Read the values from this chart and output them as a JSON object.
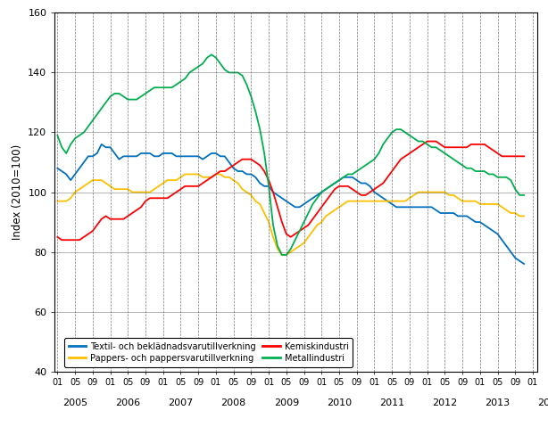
{
  "ylabel": "Index (2010=100)",
  "ylim": [
    40,
    160
  ],
  "yticks": [
    40,
    60,
    80,
    100,
    120,
    140,
    160
  ],
  "background_color": "#ffffff",
  "line_colors": {
    "textil": "#0070c0",
    "pappers": "#ffc000",
    "kemisk": "#ff0000",
    "metall": "#00b050"
  },
  "legend_labels": {
    "textil": "Textil- och beklädnadsvarutillverkning",
    "pappers": "Pappers- och pappersvarutillverkning",
    "kemisk": "Kemiskindustri",
    "metall": "Metallindustri"
  },
  "textil": [
    108,
    107,
    106,
    104,
    106,
    108,
    110,
    112,
    112,
    113,
    116,
    115,
    115,
    113,
    111,
    112,
    112,
    112,
    112,
    113,
    113,
    113,
    112,
    112,
    113,
    113,
    113,
    112,
    112,
    112,
    112,
    112,
    112,
    111,
    112,
    113,
    113,
    112,
    112,
    110,
    108,
    107,
    107,
    106,
    106,
    105,
    103,
    102,
    102,
    100,
    99,
    98,
    97,
    96,
    95,
    95,
    96,
    97,
    98,
    99,
    100,
    101,
    102,
    103,
    104,
    105,
    105,
    105,
    104,
    103,
    103,
    102,
    100,
    99,
    98,
    97,
    96,
    95,
    95,
    95,
    95,
    95,
    95,
    95,
    95,
    95,
    94,
    93,
    93,
    93,
    93,
    92,
    92,
    92,
    91,
    90,
    90,
    89,
    88,
    87,
    86,
    84,
    82,
    80,
    78,
    77,
    76
  ],
  "pappers": [
    97,
    97,
    97,
    98,
    100,
    101,
    102,
    103,
    104,
    104,
    104,
    103,
    102,
    101,
    101,
    101,
    101,
    100,
    100,
    100,
    100,
    100,
    101,
    102,
    103,
    104,
    104,
    104,
    105,
    106,
    106,
    106,
    106,
    105,
    105,
    105,
    106,
    106,
    105,
    105,
    104,
    103,
    101,
    100,
    99,
    97,
    96,
    93,
    90,
    85,
    81,
    79,
    79,
    80,
    81,
    82,
    83,
    85,
    87,
    89,
    90,
    92,
    93,
    94,
    95,
    96,
    97,
    97,
    97,
    97,
    97,
    97,
    97,
    97,
    97,
    97,
    97,
    97,
    97,
    97,
    98,
    99,
    100,
    100,
    100,
    100,
    100,
    100,
    100,
    99,
    99,
    98,
    97,
    97,
    97,
    97,
    96,
    96,
    96,
    96,
    96,
    95,
    94,
    93,
    93,
    92,
    92
  ],
  "kemisk": [
    85,
    84,
    84,
    84,
    84,
    84,
    85,
    86,
    87,
    89,
    91,
    92,
    91,
    91,
    91,
    91,
    92,
    93,
    94,
    95,
    97,
    98,
    98,
    98,
    98,
    98,
    99,
    100,
    101,
    102,
    102,
    102,
    102,
    103,
    104,
    105,
    106,
    107,
    107,
    108,
    109,
    110,
    111,
    111,
    111,
    110,
    109,
    107,
    104,
    100,
    95,
    90,
    86,
    85,
    86,
    87,
    88,
    89,
    91,
    93,
    95,
    97,
    99,
    101,
    102,
    102,
    102,
    101,
    100,
    99,
    99,
    100,
    101,
    102,
    103,
    105,
    107,
    109,
    111,
    112,
    113,
    114,
    115,
    116,
    117,
    117,
    117,
    116,
    115,
    115,
    115,
    115,
    115,
    115,
    116,
    116,
    116,
    116,
    115,
    114,
    113,
    112,
    112,
    112,
    112,
    112,
    112
  ],
  "metall": [
    119,
    115,
    113,
    116,
    118,
    119,
    120,
    122,
    124,
    126,
    128,
    130,
    132,
    133,
    133,
    132,
    131,
    131,
    131,
    132,
    133,
    134,
    135,
    135,
    135,
    135,
    135,
    136,
    137,
    138,
    140,
    141,
    142,
    143,
    145,
    146,
    145,
    143,
    141,
    140,
    140,
    140,
    139,
    136,
    132,
    127,
    121,
    113,
    102,
    89,
    82,
    79,
    79,
    81,
    84,
    87,
    90,
    93,
    96,
    98,
    100,
    101,
    102,
    103,
    104,
    105,
    106,
    106,
    107,
    108,
    109,
    110,
    111,
    113,
    116,
    118,
    120,
    121,
    121,
    120,
    119,
    118,
    117,
    117,
    116,
    115,
    115,
    114,
    113,
    112,
    111,
    110,
    109,
    108,
    108,
    107,
    107,
    107,
    106,
    106,
    105,
    105,
    105,
    104,
    101,
    99,
    99
  ]
}
